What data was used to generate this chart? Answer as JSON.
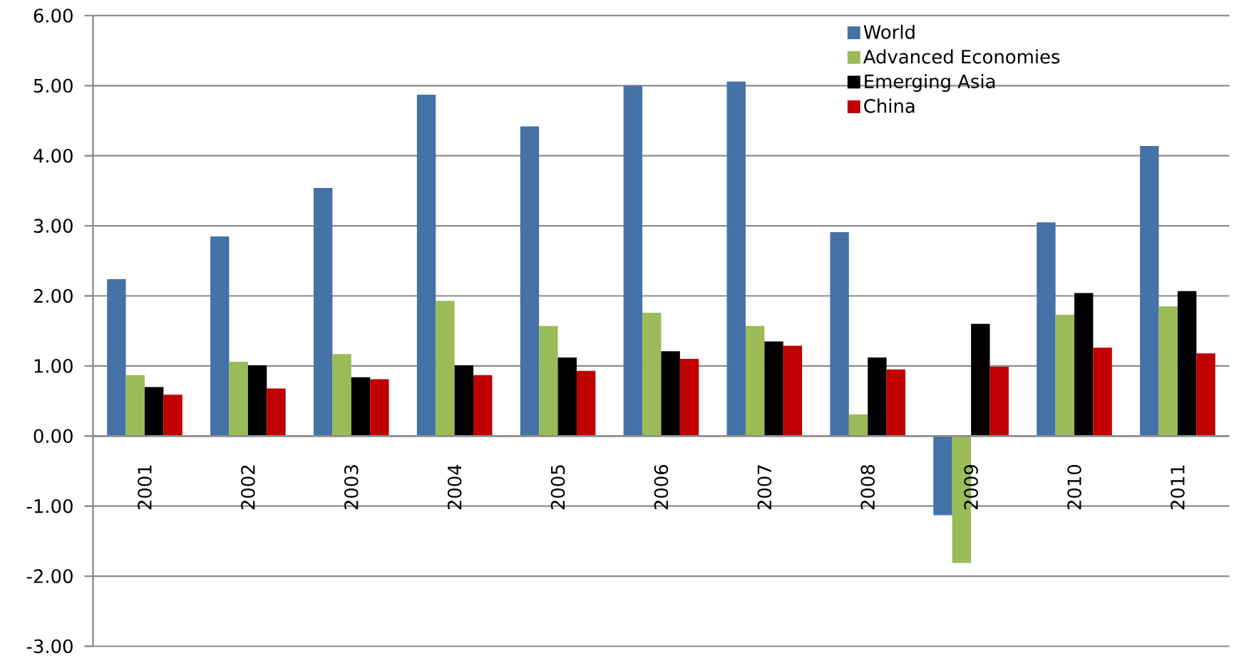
{
  "chart_data": {
    "type": "bar",
    "categories": [
      "2001",
      "2002",
      "2003",
      "2004",
      "2005",
      "2006",
      "2007",
      "2008",
      "2009",
      "2010",
      "2011"
    ],
    "series": [
      {
        "name": "World",
        "color": "#4572a7",
        "values": [
          2.24,
          2.85,
          3.54,
          4.87,
          4.42,
          5.0,
          5.06,
          2.91,
          -1.13,
          3.05,
          4.14
        ]
      },
      {
        "name": "Advanced Economies",
        "color": "#9bbb59",
        "values": [
          0.87,
          1.06,
          1.17,
          1.93,
          1.57,
          1.76,
          1.57,
          0.31,
          -1.81,
          1.73,
          1.85
        ]
      },
      {
        "name": "Emerging Asia",
        "color": "#000000",
        "values": [
          0.7,
          1.01,
          0.84,
          1.01,
          1.12,
          1.21,
          1.35,
          1.12,
          1.6,
          2.04,
          2.07
        ]
      },
      {
        "name": "China",
        "color": "#c00000",
        "values": [
          0.59,
          0.68,
          0.81,
          0.87,
          0.93,
          1.1,
          1.29,
          0.95,
          0.99,
          1.26,
          1.18
        ]
      }
    ],
    "ylim": [
      -3,
      6
    ],
    "yticks": [
      {
        "value": -3,
        "label": "-3.00"
      },
      {
        "value": -2,
        "label": "-2.00"
      },
      {
        "value": -1,
        "label": "-1.00"
      },
      {
        "value": 0,
        "label": "0.00"
      },
      {
        "value": 1,
        "label": "1.00"
      },
      {
        "value": 2,
        "label": "2.00"
      },
      {
        "value": 3,
        "label": "3.00"
      },
      {
        "value": 4,
        "label": "4.00"
      },
      {
        "value": 5,
        "label": "5.00"
      },
      {
        "value": 6,
        "label": "6.00"
      }
    ],
    "grid": "y",
    "legend": "top right"
  }
}
